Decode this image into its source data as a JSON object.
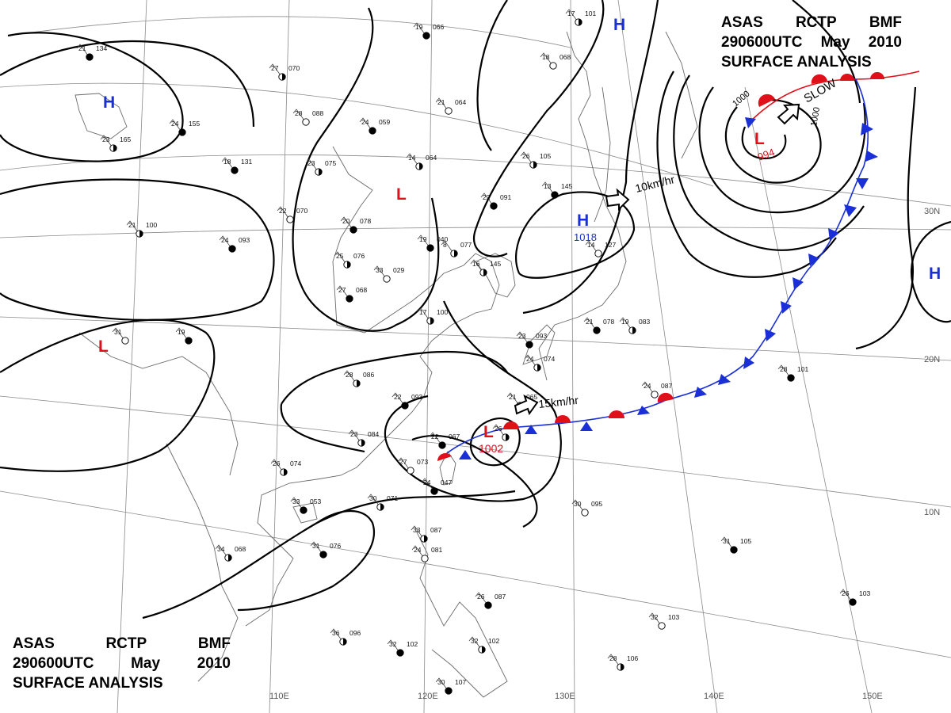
{
  "header": {
    "agency": "ASAS",
    "station": "RCTP",
    "unit": "BMF",
    "datetime": "290600UTC",
    "month": "May",
    "year": "2010",
    "title": "SURFACE ANALYSIS"
  },
  "pressure_centers": [
    {
      "symbol": "H",
      "value": "",
      "color": "#1a2fd6"
    },
    {
      "symbol": "H",
      "value": "",
      "color": "#1a2fd6"
    },
    {
      "symbol": "H",
      "value": "1018",
      "color": "#1a2fd6"
    },
    {
      "symbol": "H",
      "value": "",
      "color": "#1a2fd6"
    },
    {
      "symbol": "L",
      "value": "994",
      "color": "#e0101a"
    },
    {
      "symbol": "L",
      "value": "1002",
      "color": "#e0101a"
    },
    {
      "symbol": "L",
      "value": "",
      "color": "#e0101a"
    },
    {
      "symbol": "L",
      "value": "",
      "color": "#e0101a"
    }
  ],
  "movement": [
    {
      "label": "10km/hr"
    },
    {
      "label": "15km/hr"
    },
    {
      "label": "SLOW"
    }
  ],
  "isobar_labels": [
    "1000",
    "1000"
  ],
  "lat_labels": [
    "30N",
    "20N",
    "10N"
  ],
  "lon_labels": [
    "110E",
    "120E",
    "130E",
    "140E",
    "150E"
  ],
  "stations": [
    {
      "t": "21",
      "p": "134"
    },
    {
      "t": "27",
      "p": "070"
    },
    {
      "t": "28",
      "p": "088"
    },
    {
      "t": "24",
      "p": "155"
    },
    {
      "t": "23",
      "p": "165"
    },
    {
      "t": "19",
      "p": "066"
    },
    {
      "t": "17",
      "p": "101"
    },
    {
      "t": "21",
      "p": "064"
    },
    {
      "t": "24",
      "p": "059"
    },
    {
      "t": "14",
      "p": "064"
    },
    {
      "t": "18",
      "p": "131"
    },
    {
      "t": "23",
      "p": "075"
    },
    {
      "t": "22",
      "p": "070"
    },
    {
      "t": "20",
      "p": "078"
    },
    {
      "t": "21",
      "p": "100"
    },
    {
      "t": "24",
      "p": "093"
    },
    {
      "t": "25",
      "p": "076"
    },
    {
      "t": "33",
      "p": "029"
    },
    {
      "t": "19",
      "p": "040"
    },
    {
      "t": "8",
      "p": "077"
    },
    {
      "t": "22",
      "p": "091"
    },
    {
      "t": "26",
      "p": "105"
    },
    {
      "t": "18",
      "p": "068"
    },
    {
      "t": "13",
      "p": "145"
    },
    {
      "t": "16",
      "p": "145"
    },
    {
      "t": "27",
      "p": "068"
    },
    {
      "t": "17",
      "p": "100"
    },
    {
      "t": "14",
      "p": "127"
    },
    {
      "t": "21",
      "p": "078"
    },
    {
      "t": "19",
      "p": "083"
    },
    {
      "t": "23",
      "p": "093"
    },
    {
      "t": "24",
      "p": "074"
    },
    {
      "t": "31",
      "p": ""
    },
    {
      "t": "19",
      "p": ""
    },
    {
      "t": "28",
      "p": "086"
    },
    {
      "t": "22",
      "p": "093"
    },
    {
      "t": "21",
      "p": "065"
    },
    {
      "t": "24",
      "p": "087"
    },
    {
      "t": "28",
      "p": "101"
    },
    {
      "t": "23",
      "p": "084"
    },
    {
      "t": "22",
      "p": "067"
    },
    {
      "t": "26",
      "p": ""
    },
    {
      "t": "27",
      "p": "073"
    },
    {
      "t": "24",
      "p": "047"
    },
    {
      "t": "26",
      "p": "074"
    },
    {
      "t": "33",
      "p": "053"
    },
    {
      "t": "30",
      "p": "071"
    },
    {
      "t": "30",
      "p": "095"
    },
    {
      "t": "31",
      "p": "105"
    },
    {
      "t": "34",
      "p": "068"
    },
    {
      "t": "31",
      "p": "076"
    },
    {
      "t": "33",
      "p": "087"
    },
    {
      "t": "24",
      "p": "081"
    },
    {
      "t": "26",
      "p": "087"
    },
    {
      "t": "36",
      "p": "096"
    },
    {
      "t": "32",
      "p": "102"
    },
    {
      "t": "32",
      "p": "102"
    },
    {
      "t": "32",
      "p": "103"
    },
    {
      "t": "30",
      "p": "107"
    },
    {
      "t": "28",
      "p": "106"
    },
    {
      "t": "26",
      "p": "103"
    }
  ],
  "colors": {
    "high": "#1a2fd6",
    "low": "#e0101a",
    "isobar": "#000000",
    "grid": "#8a8a8a",
    "coast": "#6a6a6a"
  }
}
